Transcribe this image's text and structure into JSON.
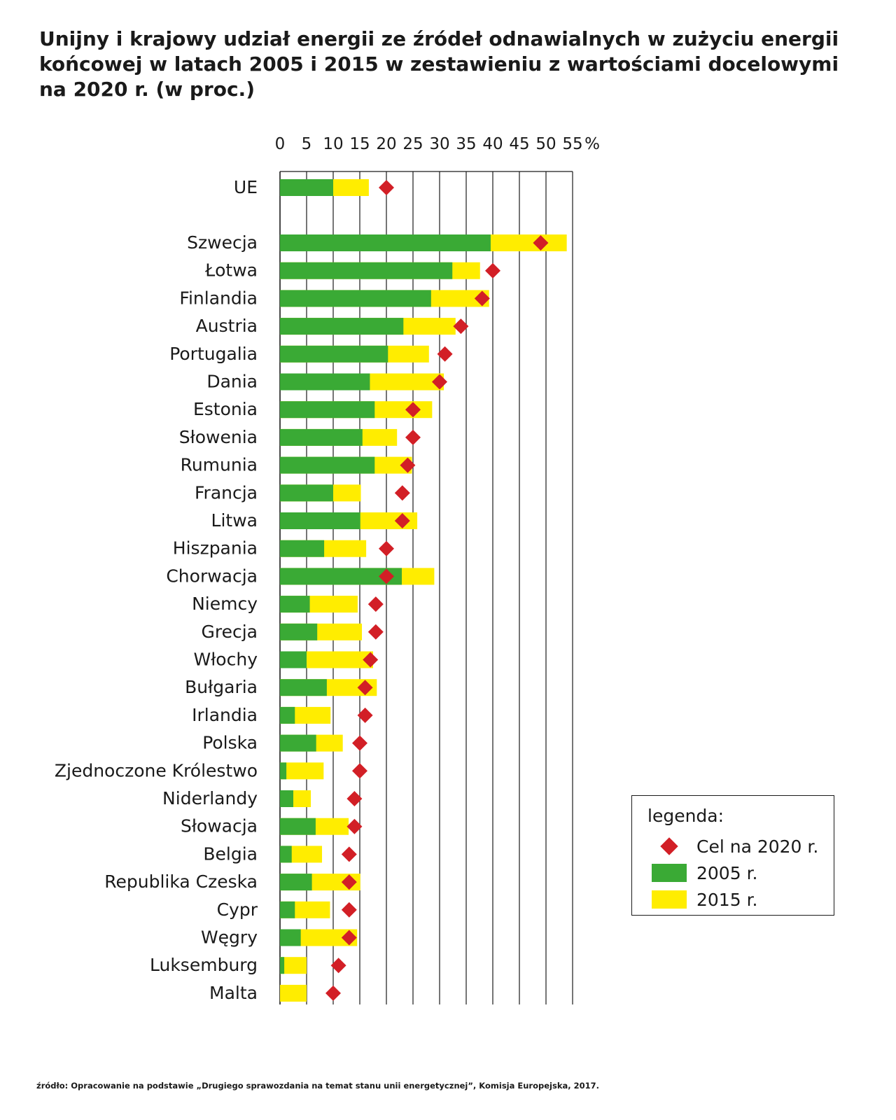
{
  "title": "Unijny i krajowy udział energii ze źródeł odnawialnych w zużyciu energii końcowej w latach 2005 i 2015 w zestawieniu z wartościami docelowymi na 2020 r. (w proc.)",
  "source": "źródło: Opracowanie na podstawie „Drugiego sprawozdania na temat stanu unii energetycznej”, Komisja Europejska, 2017.",
  "colors": {
    "series_2005": "#3aaa35",
    "series_2015": "#ffed00",
    "target": "#d21f26",
    "grid": "#1a1a1a"
  },
  "legend": {
    "title": "legenda:",
    "items": [
      {
        "label": "Cel na 2020 r.",
        "icon": "red-diamond"
      },
      {
        "label": "2005 r.",
        "icon": "green-box"
      },
      {
        "label": "2015 r.",
        "icon": "yellow-box"
      }
    ]
  },
  "chart_data": {
    "type": "bar",
    "orientation": "horizontal",
    "title": "Unijny i krajowy udział energii ze źródeł odnawialnych w zużyciu energii końcowej w latach 2005 i 2015 w zestawieniu z wartościami docelowymi na 2020 r. (w proc.)",
    "xlim": [
      0,
      55
    ],
    "x_ticks": [
      "0",
      "5",
      "10",
      "15",
      "20",
      "25",
      "30",
      "35",
      "40",
      "45",
      "50",
      "55"
    ],
    "x_unit": "%",
    "grid": true,
    "legend_position": "bottom-right",
    "categories": [
      "UE",
      "Szwecja",
      "Łotwa",
      "Finlandia",
      "Austria",
      "Portugalia",
      "Dania",
      "Estonia",
      "Słowenia",
      "Rumunia",
      "Francja",
      "Litwa",
      "Hiszpania",
      "Chorwacja",
      "Niemcy",
      "Grecja",
      "Włochy",
      "Bułgaria",
      "Irlandia",
      "Polska",
      "Zjednoczone Królestwo",
      "Niderlandy",
      "Słowacja",
      "Belgia",
      "Republika Czeska",
      "Cypr",
      "Węgry",
      "Luksemburg",
      "Malta"
    ],
    "series": [
      {
        "name": "2005 r.",
        "values": [
          10.0,
          39.6,
          32.4,
          28.4,
          23.2,
          20.3,
          16.9,
          17.8,
          15.5,
          17.8,
          10.0,
          15.1,
          8.3,
          22.9,
          5.6,
          7.0,
          5.0,
          8.8,
          2.8,
          6.8,
          1.2,
          2.5,
          6.7,
          2.2,
          6.0,
          2.8,
          3.9,
          0.8,
          0.0
        ]
      },
      {
        "name": "2015 r.",
        "values": [
          16.7,
          53.9,
          37.6,
          39.3,
          33.0,
          28.0,
          30.8,
          28.6,
          22.0,
          24.8,
          15.2,
          25.8,
          16.2,
          29.0,
          14.6,
          15.4,
          17.5,
          18.2,
          9.5,
          11.8,
          8.2,
          5.8,
          12.9,
          7.9,
          15.1,
          9.4,
          14.5,
          5.0,
          5.0
        ]
      },
      {
        "name": "Cel na 2020 r.",
        "marker": "diamond",
        "values": [
          20,
          49,
          40,
          38,
          34,
          31,
          30,
          25,
          25,
          24,
          23,
          23,
          20,
          20,
          18,
          18,
          17,
          16,
          16,
          15,
          15,
          14,
          14,
          13,
          13,
          13,
          13,
          11,
          10
        ]
      }
    ]
  }
}
